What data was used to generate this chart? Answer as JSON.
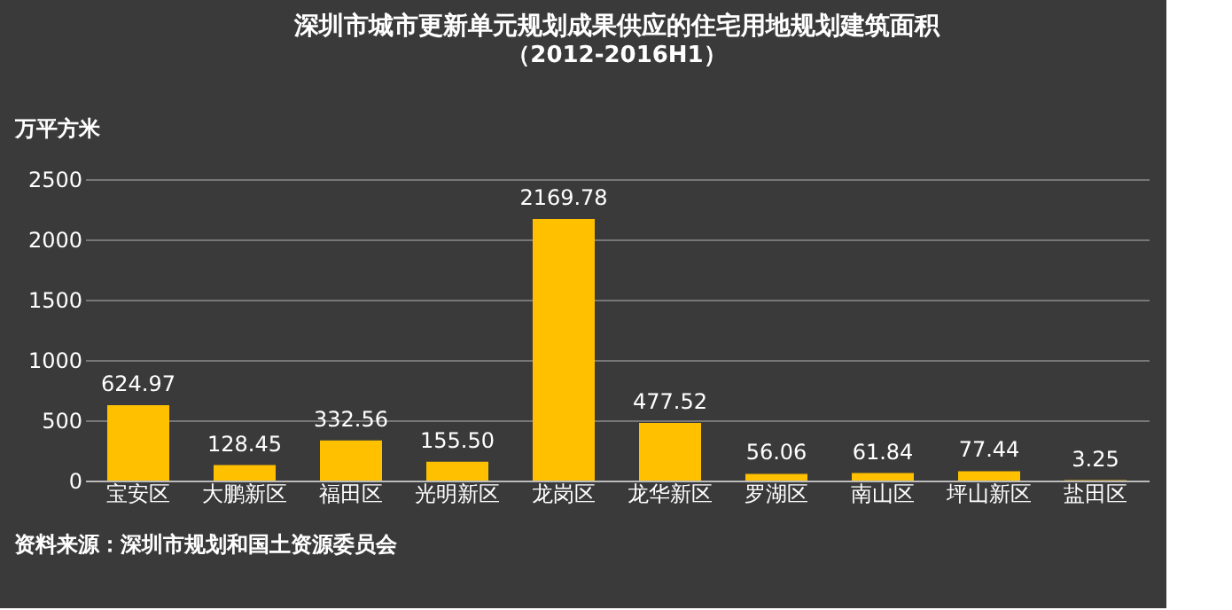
{
  "chart_data": {
    "type": "bar",
    "title": "深圳市城市更新单元规划成果供应的住宅用地规划建筑面积",
    "subtitle": "（2012-2016H1）",
    "ylabel": "万平方米",
    "categories": [
      "宝安区",
      "大鹏新区",
      "福田区",
      "光明新区",
      "龙岗区",
      "龙华新区",
      "罗湖区",
      "南山区",
      "坪山新区",
      "盐田区"
    ],
    "values": [
      624.97,
      128.45,
      332.56,
      155.5,
      2169.78,
      477.52,
      56.06,
      61.84,
      77.44,
      3.25
    ],
    "value_labels": [
      "624.97",
      "128.45",
      "332.56",
      "155.50",
      "2169.78",
      "477.52",
      "56.06",
      "61.84",
      "77.44",
      "3.25"
    ],
    "color": "#ffc000",
    "ylim": [
      0,
      2500
    ],
    "yticks": [
      0,
      500,
      1000,
      1500,
      2000,
      2500
    ],
    "grid": "y",
    "annotations": [
      "资料来源：深圳市规划和国土资源委员会"
    ]
  }
}
